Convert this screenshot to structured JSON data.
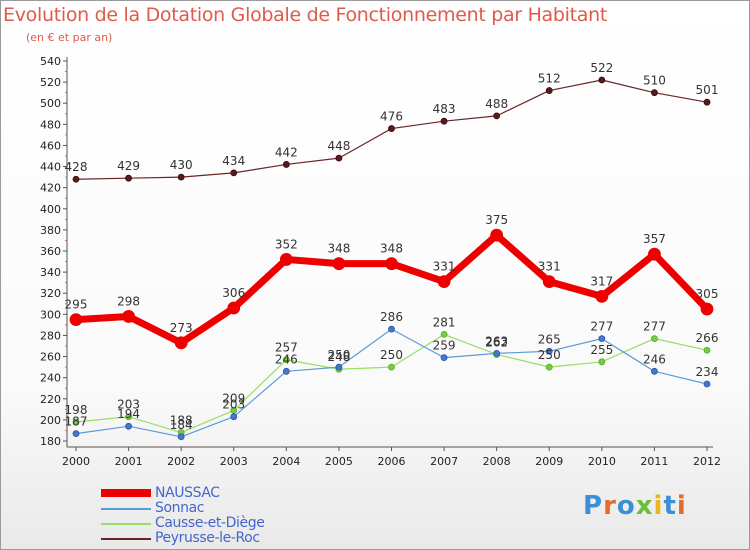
{
  "chart_data": {
    "type": "line",
    "title": "Evolution de la Dotation Globale de Fonctionnement par Habitant",
    "subtitle": "(en € et par an)",
    "xlabel": "",
    "ylabel": "",
    "x": [
      "2000",
      "2001",
      "2002",
      "2003",
      "2004",
      "2005",
      "2006",
      "2007",
      "2008",
      "2009",
      "2010",
      "2011",
      "2012"
    ],
    "ylim": [
      180,
      540
    ],
    "yticks": [
      180,
      200,
      220,
      240,
      260,
      280,
      300,
      320,
      340,
      360,
      380,
      400,
      420,
      440,
      460,
      480,
      500,
      520,
      540
    ],
    "grid": false,
    "legend_position": "bottom-left",
    "series": [
      {
        "name": "NAUSSAC",
        "color": "#ee0000",
        "values": [
          295,
          298,
          273,
          306,
          352,
          348,
          348,
          331,
          375,
          331,
          317,
          357,
          305
        ]
      },
      {
        "name": "Sonnac",
        "color": "#5b9bd5",
        "values": [
          187,
          194,
          184,
          203,
          246,
          250,
          286,
          259,
          263,
          265,
          277,
          246,
          234
        ]
      },
      {
        "name": "Causse-et-Diège",
        "color": "#99dd66",
        "values": [
          198,
          203,
          188,
          209,
          257,
          248,
          250,
          281,
          262,
          250,
          255,
          277,
          266
        ]
      },
      {
        "name": "Peyrusse-le-Roc",
        "color": "#6b2426",
        "values": [
          428,
          429,
          430,
          434,
          442,
          448,
          476,
          483,
          488,
          512,
          522,
          510,
          501
        ]
      }
    ]
  },
  "logo": {
    "text": "Proxiti"
  }
}
